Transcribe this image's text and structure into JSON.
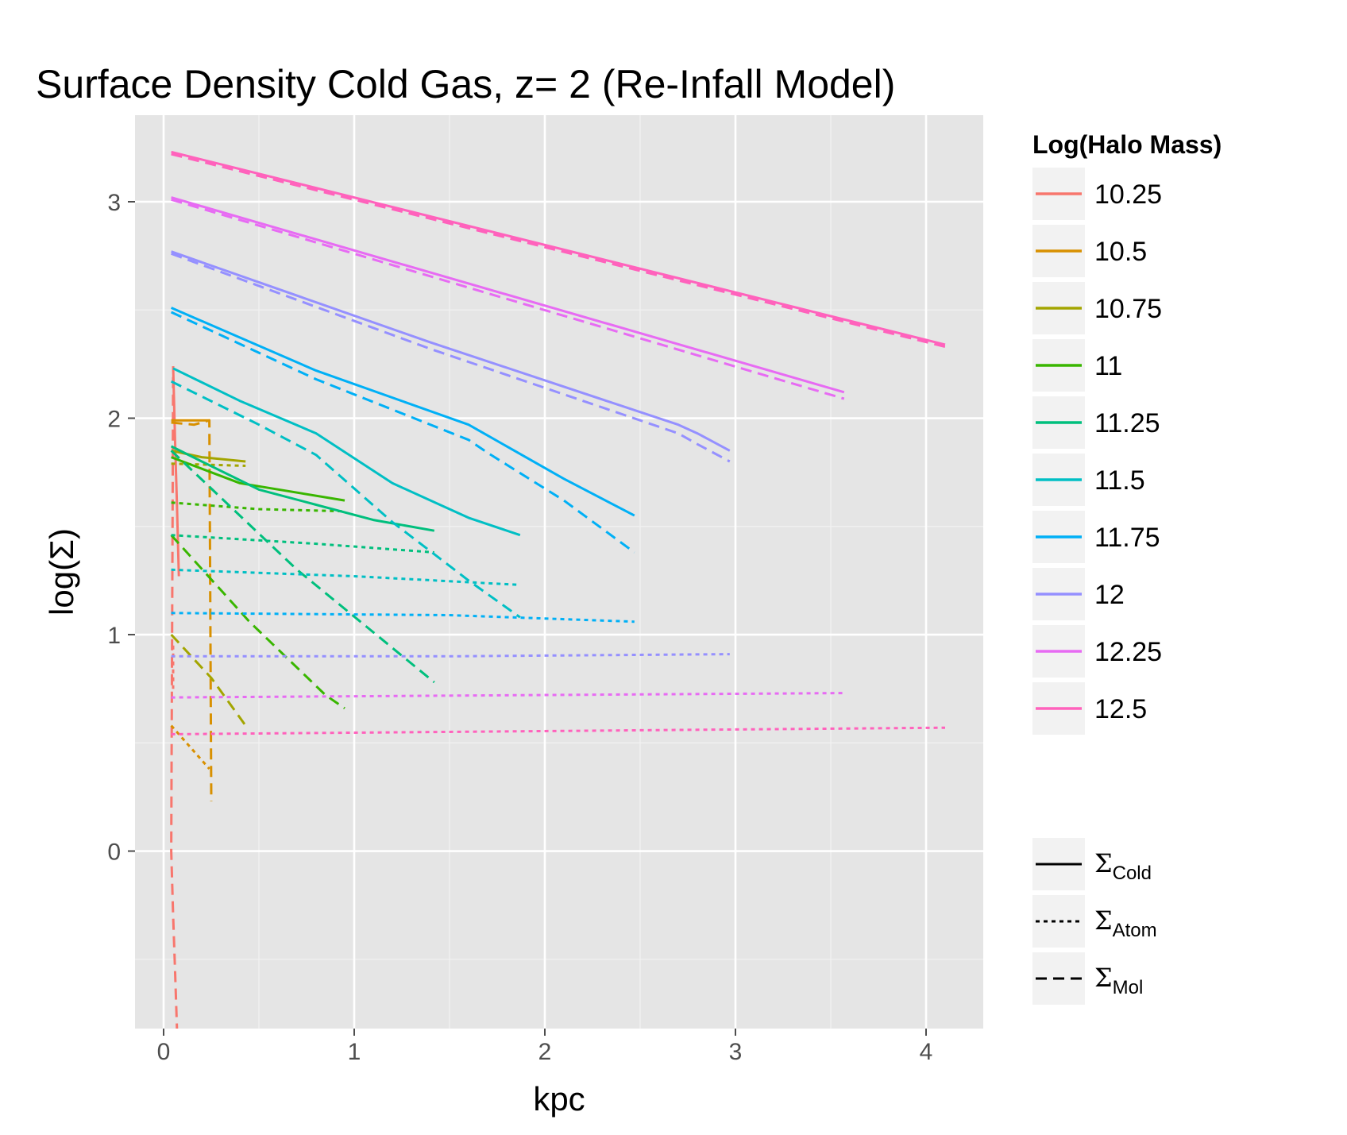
{
  "chart_data": {
    "type": "line",
    "title": "Surface Density Cold Gas, z= 2 (Re-Infall Model)",
    "xlabel": "kpc",
    "ylabel": "log(Σ)",
    "xlim": [
      -0.15,
      4.3
    ],
    "ylim": [
      -0.82,
      3.4
    ],
    "x_ticks": [
      0,
      1,
      2,
      3,
      4
    ],
    "x_tick_labels": [
      "0",
      "1",
      "2",
      "3",
      "4"
    ],
    "y_ticks": [
      0,
      1,
      2,
      3
    ],
    "y_tick_labels": [
      "0",
      "1",
      "2",
      "3"
    ],
    "grid": true,
    "background": "#e5e5e5",
    "legend_color": {
      "title": "Log(Halo Mass)",
      "position": "right",
      "entries": [
        {
          "label": "10.25",
          "color": "#f8766d"
        },
        {
          "label": "10.5",
          "color": "#d89000"
        },
        {
          "label": "10.75",
          "color": "#a3a500"
        },
        {
          "label": "11",
          "color": "#39b600"
        },
        {
          "label": "11.25",
          "color": "#00bf7d"
        },
        {
          "label": "11.5",
          "color": "#00bfc4"
        },
        {
          "label": "11.75",
          "color": "#00b0f6"
        },
        {
          "label": "12",
          "color": "#9590ff"
        },
        {
          "label": "12.25",
          "color": "#e76bf3"
        },
        {
          "label": "12.5",
          "color": "#ff62bc"
        }
      ]
    },
    "legend_linetype": {
      "position": "right-bottom",
      "entries": [
        {
          "symbol": "Σ",
          "sub": "Cold",
          "dash": "solid"
        },
        {
          "symbol": "Σ",
          "sub": "Atom",
          "dash": "dotted"
        },
        {
          "symbol": "Σ",
          "sub": "Mol",
          "dash": "dashed"
        }
      ]
    },
    "series": [
      {
        "mass": "10.25",
        "type": "Cold",
        "x": [
          0.05,
          0.06,
          0.07,
          0.08
        ],
        "y": [
          2.24,
          1.9,
          1.6,
          1.27
        ]
      },
      {
        "mass": "10.25",
        "type": "Atom",
        "x": [
          0.05,
          0.05
        ],
        "y": [
          0.95,
          0.75
        ]
      },
      {
        "mass": "10.25",
        "type": "Mol",
        "x": [
          0.05,
          0.04,
          0.05,
          0.06,
          0.07
        ],
        "y": [
          2.19,
          0.0,
          -0.3,
          -0.55,
          -0.82
        ]
      },
      {
        "mass": "10.5",
        "type": "Cold",
        "x": [
          0.04,
          0.24
        ],
        "y": [
          1.99,
          1.99
        ]
      },
      {
        "mass": "10.5",
        "type": "Atom",
        "x": [
          0.04,
          0.24
        ],
        "y": [
          0.58,
          0.38
        ]
      },
      {
        "mass": "10.5",
        "type": "Mol",
        "x": [
          0.04,
          0.16,
          0.24,
          0.25
        ],
        "y": [
          1.98,
          1.97,
          1.99,
          0.23
        ]
      },
      {
        "mass": "10.75",
        "type": "Cold",
        "x": [
          0.04,
          0.2,
          0.43
        ],
        "y": [
          1.85,
          1.82,
          1.8
        ]
      },
      {
        "mass": "10.75",
        "type": "Atom",
        "x": [
          0.04,
          0.43
        ],
        "y": [
          1.79,
          1.78
        ]
      },
      {
        "mass": "10.75",
        "type": "Mol",
        "x": [
          0.04,
          0.25,
          0.43
        ],
        "y": [
          1.0,
          0.8,
          0.58
        ]
      },
      {
        "mass": "11",
        "type": "Cold",
        "x": [
          0.04,
          0.4,
          0.95
        ],
        "y": [
          1.82,
          1.7,
          1.62
        ]
      },
      {
        "mass": "11",
        "type": "Atom",
        "x": [
          0.04,
          0.5,
          0.95
        ],
        "y": [
          1.61,
          1.58,
          1.57
        ]
      },
      {
        "mass": "11",
        "type": "Mol",
        "x": [
          0.04,
          0.45,
          0.85,
          0.95
        ],
        "y": [
          1.46,
          1.06,
          0.72,
          0.66
        ]
      },
      {
        "mass": "11.25",
        "type": "Cold",
        "x": [
          0.04,
          0.2,
          0.5,
          0.8,
          1.1,
          1.42
        ],
        "y": [
          1.87,
          1.8,
          1.67,
          1.6,
          1.53,
          1.48
        ]
      },
      {
        "mass": "11.25",
        "type": "Atom",
        "x": [
          0.04,
          0.8,
          1.42
        ],
        "y": [
          1.46,
          1.42,
          1.38
        ]
      },
      {
        "mass": "11.25",
        "type": "Mol",
        "x": [
          0.04,
          0.7,
          1.42
        ],
        "y": [
          1.85,
          1.3,
          0.78
        ]
      },
      {
        "mass": "11.5",
        "type": "Cold",
        "x": [
          0.05,
          0.4,
          0.8,
          1.2,
          1.6,
          1.87
        ],
        "y": [
          2.23,
          2.08,
          1.93,
          1.7,
          1.54,
          1.46
        ]
      },
      {
        "mass": "11.5",
        "type": "Atom",
        "x": [
          0.04,
          1.0,
          1.87
        ],
        "y": [
          1.3,
          1.27,
          1.23
        ]
      },
      {
        "mass": "11.5",
        "type": "Mol",
        "x": [
          0.04,
          0.5,
          0.8,
          1.2,
          1.6,
          1.87
        ],
        "y": [
          2.17,
          1.97,
          1.83,
          1.52,
          1.25,
          1.08
        ]
      },
      {
        "mass": "11.75",
        "type": "Cold",
        "x": [
          0.04,
          0.8,
          1.6,
          1.7,
          2.1,
          2.47
        ],
        "y": [
          2.51,
          2.22,
          1.97,
          1.92,
          1.72,
          1.55
        ]
      },
      {
        "mass": "11.75",
        "type": "Atom",
        "x": [
          0.04,
          1.5,
          2.47
        ],
        "y": [
          1.1,
          1.09,
          1.06
        ]
      },
      {
        "mass": "11.75",
        "type": "Mol",
        "x": [
          0.04,
          0.8,
          1.6,
          1.7,
          2.1,
          2.47
        ],
        "y": [
          2.49,
          2.18,
          1.9,
          1.84,
          1.62,
          1.38
        ]
      },
      {
        "mass": "12",
        "type": "Cold",
        "x": [
          0.04,
          1.4,
          2.7,
          2.8,
          2.97
        ],
        "y": [
          2.77,
          2.35,
          1.97,
          1.93,
          1.85
        ]
      },
      {
        "mass": "12",
        "type": "Atom",
        "x": [
          0.04,
          1.5,
          2.97
        ],
        "y": [
          0.9,
          0.9,
          0.91
        ]
      },
      {
        "mass": "12",
        "type": "Mol",
        "x": [
          0.04,
          1.4,
          2.7,
          2.8,
          2.97
        ],
        "y": [
          2.76,
          2.32,
          1.93,
          1.88,
          1.8
        ]
      },
      {
        "mass": "12.25",
        "type": "Cold",
        "x": [
          0.04,
          3.57
        ],
        "y": [
          3.02,
          2.12
        ]
      },
      {
        "mass": "12.25",
        "type": "Atom",
        "x": [
          0.04,
          3.57
        ],
        "y": [
          0.71,
          0.73
        ]
      },
      {
        "mass": "12.25",
        "type": "Mol",
        "x": [
          0.04,
          3.57
        ],
        "y": [
          3.01,
          2.09
        ]
      },
      {
        "mass": "12.5",
        "type": "Cold",
        "x": [
          0.04,
          4.1
        ],
        "y": [
          3.23,
          2.34
        ]
      },
      {
        "mass": "12.5",
        "type": "Atom",
        "x": [
          0.04,
          4.1
        ],
        "y": [
          0.54,
          0.57
        ]
      },
      {
        "mass": "12.5",
        "type": "Mol",
        "x": [
          0.04,
          4.1
        ],
        "y": [
          3.22,
          2.33
        ]
      }
    ]
  }
}
